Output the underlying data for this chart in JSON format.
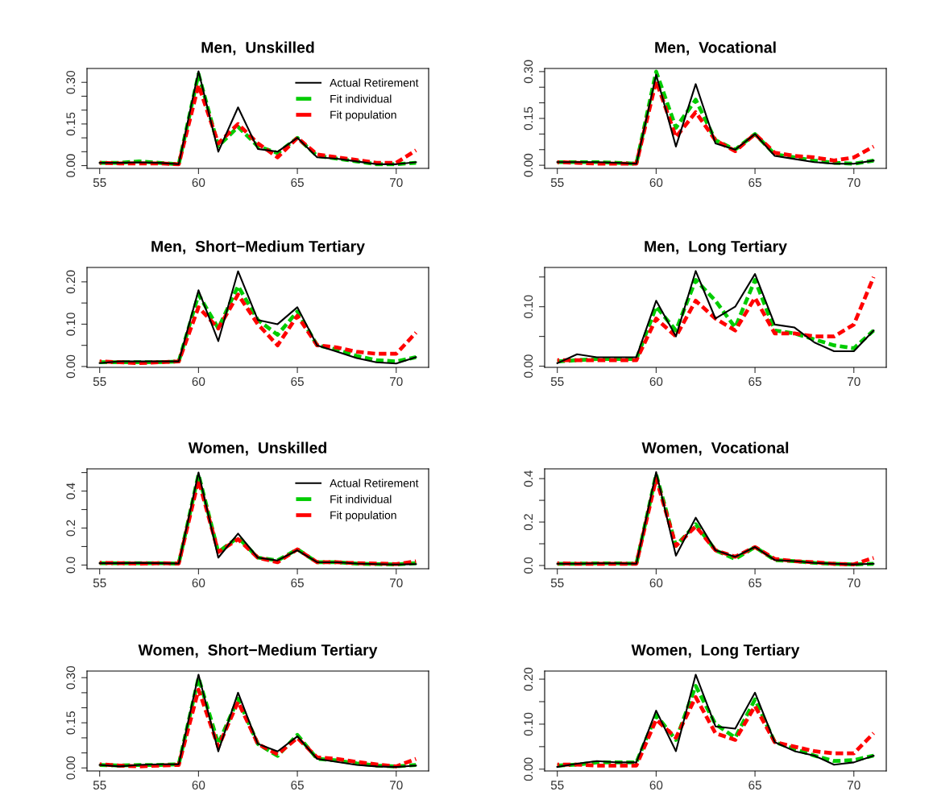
{
  "chart_data": [
    {
      "type": "line",
      "title": "Men,  Unskilled",
      "x": [
        55,
        56,
        57,
        58,
        59,
        60,
        61,
        62,
        63,
        64,
        65,
        66,
        67,
        68,
        69,
        70,
        71
      ],
      "xlim": [
        54.36,
        71.64
      ],
      "xticks": [
        55,
        60,
        65,
        70
      ],
      "ylim": [
        -0.01,
        0.35
      ],
      "yticks": [
        {
          "value": 0,
          "label": "0.00"
        },
        {
          "value": 0.05,
          "label": null
        },
        {
          "value": 0.1,
          "label": null
        },
        {
          "value": 0.15,
          "label": "0.15"
        },
        {
          "value": 0.2,
          "label": null
        },
        {
          "value": 0.25,
          "label": null
        },
        {
          "value": 0.3,
          "label": "0.30"
        }
      ],
      "legend": "top right",
      "grid": false,
      "series": [
        {
          "name": "Actual Retirement",
          "color": "#000000",
          "line_style": "solid",
          "values": [
            0.01,
            0.01,
            0.012,
            0.01,
            0.005,
            0.34,
            0.05,
            0.21,
            0.06,
            0.05,
            0.1,
            0.03,
            0.025,
            0.015,
            0.005,
            0.005,
            0.012
          ]
        },
        {
          "name": "Fit individual",
          "color": "#00cc00",
          "line_style": "dashed",
          "values": [
            0.01,
            0.01,
            0.015,
            0.01,
            0.005,
            0.33,
            0.07,
            0.14,
            0.07,
            0.045,
            0.1,
            0.035,
            0.025,
            0.015,
            0.005,
            0.005,
            0.01
          ]
        },
        {
          "name": "Fit population",
          "color": "#ff0000",
          "line_style": "dashed",
          "values": [
            0.01,
            0.008,
            0.008,
            0.008,
            0.005,
            0.29,
            0.08,
            0.15,
            0.08,
            0.03,
            0.1,
            0.04,
            0.03,
            0.02,
            0.01,
            0.01,
            0.055
          ]
        }
      ]
    },
    {
      "type": "line",
      "title": "Men,  Vocational",
      "x": [
        55,
        56,
        57,
        58,
        59,
        60,
        61,
        62,
        63,
        64,
        65,
        66,
        67,
        68,
        69,
        70,
        71
      ],
      "xlim": [
        54.36,
        71.64
      ],
      "xticks": [
        55,
        60,
        65,
        70
      ],
      "ylim": [
        -0.01,
        0.31
      ],
      "yticks": [
        {
          "value": 0,
          "label": "0.00"
        },
        {
          "value": 0.05,
          "label": null
        },
        {
          "value": 0.1,
          "label": null
        },
        {
          "value": 0.15,
          "label": "0.15"
        },
        {
          "value": 0.2,
          "label": null
        },
        {
          "value": 0.25,
          "label": null
        },
        {
          "value": 0.3,
          "label": "0.30"
        }
      ],
      "grid": false,
      "series": [
        {
          "color": "#000000",
          "line_style": "solid",
          "values": [
            0.01,
            0.01,
            0.01,
            0.008,
            0.005,
            0.29,
            0.06,
            0.26,
            0.07,
            0.05,
            0.1,
            0.03,
            0.02,
            0.01,
            0.005,
            0.005,
            0.015
          ]
        },
        {
          "color": "#00cc00",
          "line_style": "dashed",
          "values": [
            0.01,
            0.01,
            0.01,
            0.008,
            0.005,
            0.3,
            0.12,
            0.21,
            0.08,
            0.05,
            0.1,
            0.035,
            0.025,
            0.015,
            0.008,
            0.005,
            0.015
          ]
        },
        {
          "color": "#ff0000",
          "line_style": "dashed",
          "values": [
            0.01,
            0.008,
            0.005,
            0.005,
            0.005,
            0.27,
            0.09,
            0.17,
            0.08,
            0.045,
            0.1,
            0.04,
            0.03,
            0.025,
            0.015,
            0.025,
            0.06
          ]
        }
      ]
    },
    {
      "type": "line",
      "title": "Men,  Short−Medium Tertiary",
      "x": [
        55,
        56,
        57,
        58,
        59,
        60,
        61,
        62,
        63,
        64,
        65,
        66,
        67,
        68,
        69,
        70,
        71
      ],
      "xlim": [
        54.36,
        71.64
      ],
      "xticks": [
        55,
        60,
        65,
        70
      ],
      "ylim": [
        -0.002,
        0.234
      ],
      "yticks": [
        {
          "value": 0,
          "label": "0.00"
        },
        {
          "value": 0.05,
          "label": null
        },
        {
          "value": 0.1,
          "label": "0.10"
        },
        {
          "value": 0.15,
          "label": null
        },
        {
          "value": 0.2,
          "label": "0.20"
        }
      ],
      "grid": false,
      "series": [
        {
          "color": "#000000",
          "line_style": "solid",
          "values": [
            0.008,
            0.012,
            0.012,
            0.012,
            0.012,
            0.18,
            0.06,
            0.225,
            0.11,
            0.1,
            0.14,
            0.05,
            0.035,
            0.02,
            0.01,
            0.007,
            0.022
          ]
        },
        {
          "color": "#00cc00",
          "line_style": "dashed",
          "values": [
            0.01,
            0.01,
            0.01,
            0.01,
            0.012,
            0.17,
            0.09,
            0.19,
            0.11,
            0.075,
            0.13,
            0.05,
            0.04,
            0.025,
            0.015,
            0.012,
            0.022
          ]
        },
        {
          "color": "#ff0000",
          "line_style": "dashed",
          "values": [
            0.012,
            0.01,
            0.008,
            0.01,
            0.012,
            0.14,
            0.09,
            0.17,
            0.1,
            0.05,
            0.12,
            0.05,
            0.045,
            0.035,
            0.03,
            0.03,
            0.08
          ]
        }
      ]
    },
    {
      "type": "line",
      "title": "Men,  Long Tertiary",
      "x": [
        55,
        56,
        57,
        58,
        59,
        60,
        61,
        62,
        63,
        64,
        65,
        66,
        67,
        68,
        69,
        70,
        71
      ],
      "xlim": [
        54.36,
        71.64
      ],
      "xticks": [
        55,
        60,
        65,
        70
      ],
      "ylim": [
        -0.002,
        0.166
      ],
      "yticks": [
        {
          "value": 0,
          "label": "0.00"
        },
        {
          "value": 0.05,
          "label": null
        },
        {
          "value": 0.1,
          "label": "0.10"
        },
        {
          "value": 0.15,
          "label": null
        }
      ],
      "grid": false,
      "series": [
        {
          "color": "#000000",
          "line_style": "solid",
          "values": [
            0.005,
            0.02,
            0.015,
            0.015,
            0.015,
            0.11,
            0.05,
            0.16,
            0.08,
            0.1,
            0.155,
            0.07,
            0.065,
            0.04,
            0.025,
            0.025,
            0.06
          ]
        },
        {
          "color": "#00cc00",
          "line_style": "dashed",
          "values": [
            0.008,
            0.01,
            0.012,
            0.012,
            0.012,
            0.1,
            0.06,
            0.145,
            0.11,
            0.065,
            0.145,
            0.06,
            0.055,
            0.045,
            0.035,
            0.03,
            0.06
          ]
        },
        {
          "color": "#ff0000",
          "line_style": "dashed",
          "values": [
            0.01,
            0.01,
            0.01,
            0.01,
            0.01,
            0.08,
            0.05,
            0.11,
            0.08,
            0.06,
            0.115,
            0.055,
            0.055,
            0.05,
            0.05,
            0.07,
            0.15
          ]
        }
      ]
    },
    {
      "type": "line",
      "title": "Women,  Unskilled",
      "x": [
        55,
        56,
        57,
        58,
        59,
        60,
        61,
        62,
        63,
        64,
        65,
        66,
        67,
        68,
        69,
        70,
        71
      ],
      "xlim": [
        54.36,
        71.64
      ],
      "xticks": [
        55,
        60,
        65,
        70
      ],
      "ylim": [
        -0.02,
        0.52
      ],
      "yticks": [
        {
          "value": 0,
          "label": "0.0"
        },
        {
          "value": 0.1,
          "label": null
        },
        {
          "value": 0.2,
          "label": "0.2"
        },
        {
          "value": 0.3,
          "label": null
        },
        {
          "value": 0.4,
          "label": "0.4"
        },
        {
          "value": 0.5,
          "label": null
        }
      ],
      "legend": "top right",
      "grid": false,
      "series": [
        {
          "name": "Actual Retirement",
          "color": "#000000",
          "line_style": "solid",
          "values": [
            0.01,
            0.01,
            0.012,
            0.01,
            0.008,
            0.5,
            0.04,
            0.17,
            0.04,
            0.025,
            0.08,
            0.015,
            0.015,
            0.008,
            0.005,
            0.003,
            0.005
          ]
        },
        {
          "name": "Fit individual",
          "color": "#00cc00",
          "line_style": "dashed",
          "values": [
            0.01,
            0.01,
            0.01,
            0.01,
            0.008,
            0.49,
            0.07,
            0.15,
            0.04,
            0.025,
            0.085,
            0.015,
            0.015,
            0.008,
            0.005,
            0.003,
            0.01
          ]
        },
        {
          "name": "Fit population",
          "color": "#ff0000",
          "line_style": "dashed",
          "values": [
            0.012,
            0.01,
            0.008,
            0.01,
            0.008,
            0.46,
            0.07,
            0.14,
            0.04,
            0.015,
            0.085,
            0.015,
            0.015,
            0.01,
            0.008,
            0.005,
            0.02
          ]
        }
      ]
    },
    {
      "type": "line",
      "title": "Women,  Vocational",
      "x": [
        55,
        56,
        57,
        58,
        59,
        60,
        61,
        62,
        63,
        64,
        65,
        66,
        67,
        68,
        69,
        70,
        71
      ],
      "xlim": [
        54.36,
        71.64
      ],
      "xticks": [
        55,
        60,
        65,
        70
      ],
      "ylim": [
        -0.015,
        0.445
      ],
      "yticks": [
        {
          "value": 0,
          "label": "0.0"
        },
        {
          "value": 0.1,
          "label": null
        },
        {
          "value": 0.2,
          "label": "0.2"
        },
        {
          "value": 0.3,
          "label": null
        },
        {
          "value": 0.4,
          "label": "0.4"
        }
      ],
      "grid": false,
      "series": [
        {
          "color": "#000000",
          "line_style": "solid",
          "values": [
            0.008,
            0.008,
            0.01,
            0.01,
            0.008,
            0.43,
            0.045,
            0.22,
            0.07,
            0.04,
            0.085,
            0.025,
            0.02,
            0.012,
            0.008,
            0.005,
            0.008
          ]
        },
        {
          "color": "#00cc00",
          "line_style": "dashed",
          "values": [
            0.008,
            0.008,
            0.01,
            0.01,
            0.008,
            0.42,
            0.09,
            0.19,
            0.07,
            0.03,
            0.085,
            0.025,
            0.02,
            0.012,
            0.008,
            0.005,
            0.008
          ]
        },
        {
          "color": "#ff0000",
          "line_style": "dashed",
          "values": [
            0.01,
            0.008,
            0.008,
            0.008,
            0.008,
            0.4,
            0.09,
            0.18,
            0.07,
            0.04,
            0.085,
            0.03,
            0.02,
            0.015,
            0.008,
            0.005,
            0.035
          ]
        }
      ]
    },
    {
      "type": "line",
      "title": "Women,  Short−Medium Tertiary",
      "x": [
        55,
        56,
        57,
        58,
        59,
        60,
        61,
        62,
        63,
        64,
        65,
        66,
        67,
        68,
        69,
        70,
        71
      ],
      "xlim": [
        54.36,
        71.64
      ],
      "xticks": [
        55,
        60,
        65,
        70
      ],
      "ylim": [
        -0.01,
        0.322
      ],
      "yticks": [
        {
          "value": 0,
          "label": "0.00"
        },
        {
          "value": 0.05,
          "label": null
        },
        {
          "value": 0.1,
          "label": null
        },
        {
          "value": 0.15,
          "label": "0.15"
        },
        {
          "value": 0.2,
          "label": null
        },
        {
          "value": 0.25,
          "label": null
        },
        {
          "value": 0.3,
          "label": "0.30"
        }
      ],
      "grid": false,
      "series": [
        {
          "color": "#000000",
          "line_style": "solid",
          "values": [
            0.01,
            0.005,
            0.01,
            0.012,
            0.012,
            0.31,
            0.055,
            0.25,
            0.08,
            0.055,
            0.105,
            0.03,
            0.02,
            0.01,
            0.005,
            0.003,
            0.008
          ]
        },
        {
          "color": "#00cc00",
          "line_style": "dashed",
          "values": [
            0.01,
            0.008,
            0.01,
            0.01,
            0.012,
            0.3,
            0.08,
            0.23,
            0.08,
            0.04,
            0.11,
            0.03,
            0.025,
            0.015,
            0.008,
            0.005,
            0.01
          ]
        },
        {
          "color": "#ff0000",
          "line_style": "dashed",
          "values": [
            0.012,
            0.008,
            0.005,
            0.008,
            0.01,
            0.26,
            0.07,
            0.22,
            0.08,
            0.045,
            0.1,
            0.035,
            0.03,
            0.02,
            0.012,
            0.005,
            0.03
          ]
        }
      ]
    },
    {
      "type": "line",
      "title": "Women,  Long Tertiary",
      "x": [
        55,
        56,
        57,
        58,
        59,
        60,
        61,
        62,
        63,
        64,
        65,
        66,
        67,
        68,
        69,
        70,
        71
      ],
      "xlim": [
        54.36,
        71.64
      ],
      "xticks": [
        55,
        60,
        65,
        70
      ],
      "ylim": [
        -0.004,
        0.218
      ],
      "yticks": [
        {
          "value": 0,
          "label": "0.00"
        },
        {
          "value": 0.05,
          "label": null
        },
        {
          "value": 0.1,
          "label": "0.10"
        },
        {
          "value": 0.15,
          "label": null
        },
        {
          "value": 0.2,
          "label": "0.20"
        }
      ],
      "grid": false,
      "series": [
        {
          "color": "#000000",
          "line_style": "solid",
          "values": [
            0.005,
            0.012,
            0.018,
            0.015,
            0.015,
            0.13,
            0.04,
            0.21,
            0.095,
            0.09,
            0.17,
            0.06,
            0.04,
            0.03,
            0.01,
            0.015,
            0.03
          ]
        },
        {
          "color": "#00cc00",
          "line_style": "dashed",
          "values": [
            0.008,
            0.01,
            0.015,
            0.015,
            0.015,
            0.12,
            0.065,
            0.185,
            0.1,
            0.07,
            0.155,
            0.06,
            0.045,
            0.03,
            0.018,
            0.02,
            0.03
          ]
        },
        {
          "color": "#ff0000",
          "line_style": "dashed",
          "values": [
            0.01,
            0.01,
            0.008,
            0.008,
            0.008,
            0.11,
            0.07,
            0.16,
            0.08,
            0.065,
            0.14,
            0.06,
            0.05,
            0.04,
            0.035,
            0.035,
            0.08
          ]
        }
      ]
    }
  ]
}
